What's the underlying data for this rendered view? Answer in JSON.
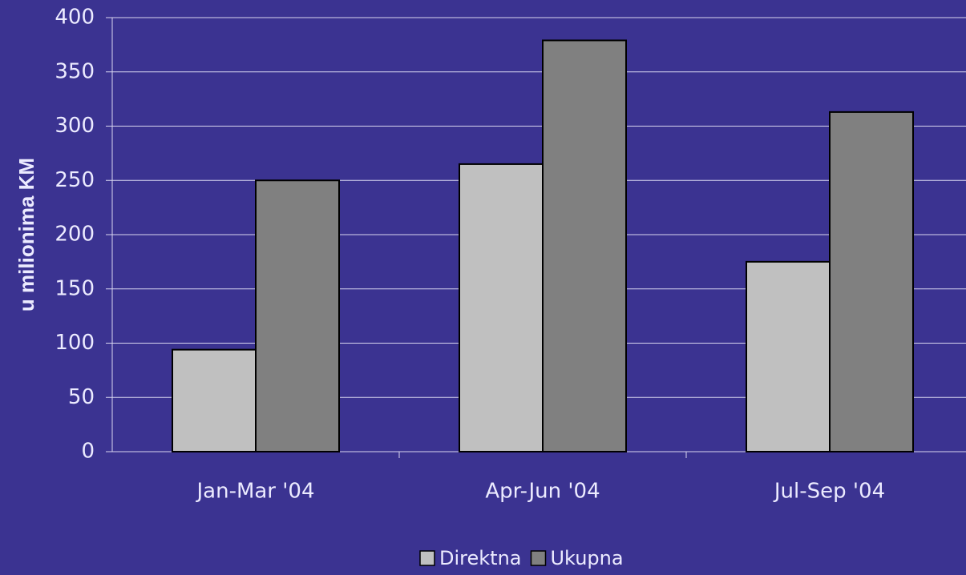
{
  "chart_data": {
    "type": "bar",
    "y_label": "u milionima KM",
    "categories": [
      "Jan-Mar '04",
      "Apr-Jun '04",
      "Jul-Sep '04"
    ],
    "series": [
      {
        "name": "Direktna",
        "color": "#c0c0c0",
        "values": [
          94,
          265,
          175
        ]
      },
      {
        "name": "Ukupna",
        "color": "#808080",
        "values": [
          250,
          379,
          313
        ]
      }
    ],
    "ylim": [
      0,
      400
    ],
    "yticks": [
      0,
      50,
      100,
      150,
      200,
      250,
      300,
      350,
      400
    ],
    "grid": true
  }
}
